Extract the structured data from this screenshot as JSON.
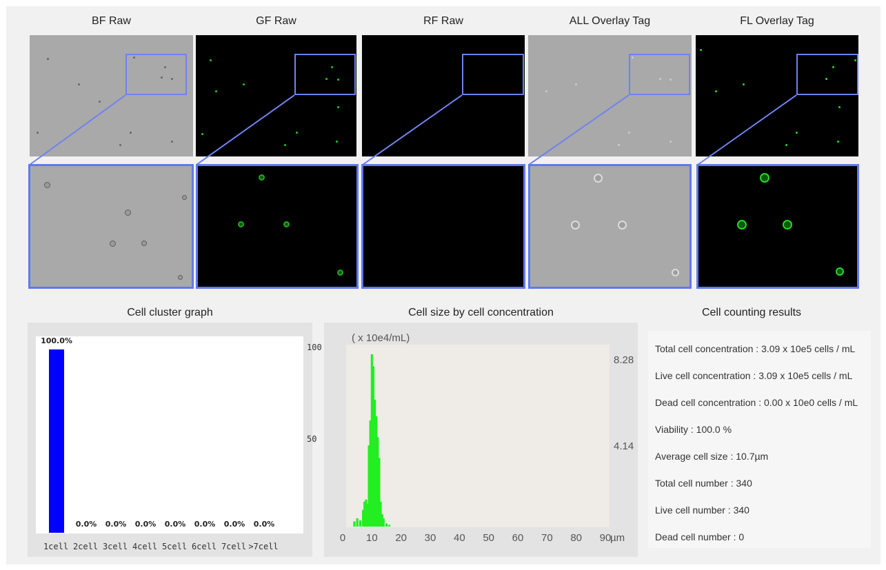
{
  "images": {
    "titles": [
      "BF Raw",
      "GF Raw",
      "RF Raw",
      "ALL Overlay Tag",
      "FL Overlay Tag"
    ]
  },
  "cluster": {
    "title": "Cell cluster graph",
    "ytick_labels": [
      "100",
      "50"
    ],
    "bar_labels": [
      "100.0%",
      "0.0%",
      "0.0%",
      "0.0%",
      "0.0%",
      "0.0%",
      "0.0%",
      "0.0%"
    ],
    "categories": [
      "1cell",
      "2cell",
      "3cell",
      "4cell",
      "5cell",
      "6cell",
      "7cell",
      ">7cell"
    ]
  },
  "size": {
    "title": "Cell size by cell concentration",
    "unit": "( x 10e4/mL)",
    "ytick_labels": [
      "8.28",
      "4.14"
    ],
    "xtick_labels": [
      "0",
      "10",
      "20",
      "30",
      "40",
      "50",
      "60",
      "70",
      "80",
      "90"
    ],
    "xunit": "µm"
  },
  "results": {
    "title": "Cell counting results",
    "lines": [
      "Total cell concentration : 3.09 x 10e5 cells / mL",
      "Live cell concentration : 3.09 x 10e5 cells / mL",
      "Dead cell concentration : 0.00 x 10e0 cells / mL",
      "Viability : 100.0 %",
      "Average cell size : 10.7µm",
      "Total cell number : 340",
      "Live cell number : 340",
      "Dead cell number : 0"
    ]
  },
  "chart_data": [
    {
      "type": "bar",
      "title": "Cell cluster graph",
      "categories": [
        "1cell",
        "2cell",
        "3cell",
        "4cell",
        "5cell",
        "6cell",
        "7cell",
        ">7cell"
      ],
      "values": [
        100.0,
        0.0,
        0.0,
        0.0,
        0.0,
        0.0,
        0.0,
        0.0
      ],
      "ylim": [
        0,
        100
      ],
      "color": "#0000ff"
    },
    {
      "type": "bar",
      "title": "Cell size by cell concentration",
      "xlabel": "µm",
      "ylabel": "( x 10e4/mL)",
      "x": [
        4,
        5,
        6,
        7,
        7.5,
        8,
        8.5,
        9,
        9.5,
        10,
        10.5,
        11,
        11.5,
        12,
        12.5,
        13,
        13.5,
        14,
        15,
        16
      ],
      "values": [
        0.25,
        0.4,
        0.3,
        0.8,
        1.2,
        1.3,
        1.1,
        3.9,
        5.1,
        8.28,
        7.7,
        6.1,
        5.3,
        4.3,
        3.3,
        1.2,
        0.6,
        0.4,
        0.15,
        0.08
      ],
      "xlim": [
        0,
        90
      ],
      "ylim": [
        0,
        8.28
      ],
      "color": "#22ee22",
      "background": "#efebe6"
    }
  ]
}
